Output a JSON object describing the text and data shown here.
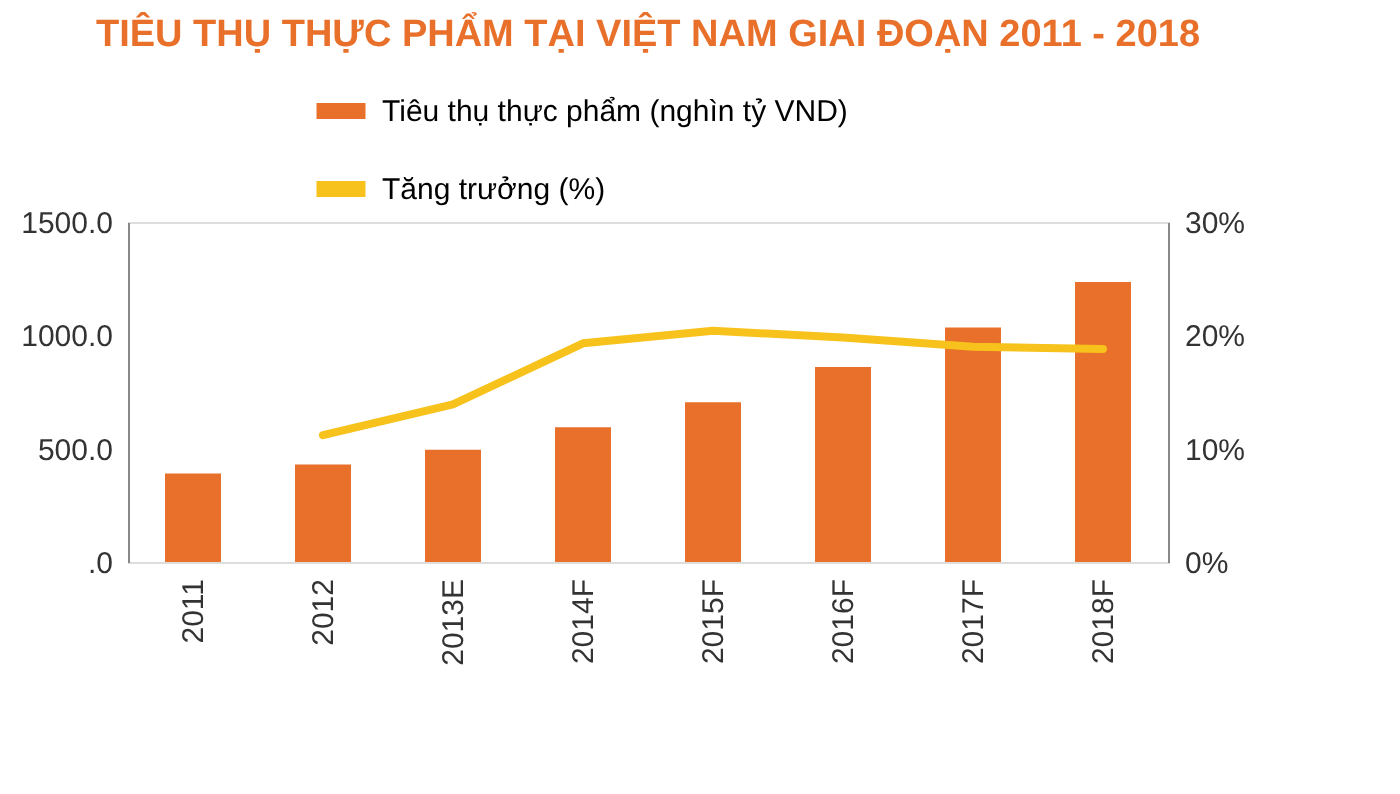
{
  "chart_data": {
    "type": "bar",
    "title": "TIÊU THỤ THỰC PHẨM TẠI VIỆT NAM GIAI ĐOẠN 2011 - 2018",
    "categories": [
      "2011",
      "2012",
      "2013E",
      "2014F",
      "2015F",
      "2016F",
      "2017F",
      "2018F"
    ],
    "series": [
      {
        "name": "Tiêu thụ thực phẩm  (nghìn tỷ VND)",
        "color": "#e8702a",
        "values": [
          390,
          430,
          495,
          595,
          705,
          860,
          1035,
          1235
        ]
      },
      {
        "name": "Tăng trưởng (%)",
        "color": "#f7c21b",
        "type": "line",
        "axis": "y2",
        "values": [
          null,
          11.2,
          13.9,
          19.3,
          20.4,
          19.8,
          19.0,
          18.8
        ]
      }
    ],
    "ylim": [
      0,
      1500
    ],
    "yticks": [
      {
        "value": 1500,
        "label": "1500.0"
      },
      {
        "value": 1000,
        "label": "1000.0"
      },
      {
        "value": 500,
        "label": "500.0"
      },
      {
        "value": 0,
        "label": ".0"
      }
    ],
    "y2lim": [
      0,
      30
    ],
    "y2ticks": [
      {
        "value": 30,
        "label": "30%"
      },
      {
        "value": 20,
        "label": "20%"
      },
      {
        "value": 10,
        "label": "10%"
      },
      {
        "value": 0,
        "label": "0%"
      }
    ],
    "legend": "top left",
    "grid": false
  }
}
